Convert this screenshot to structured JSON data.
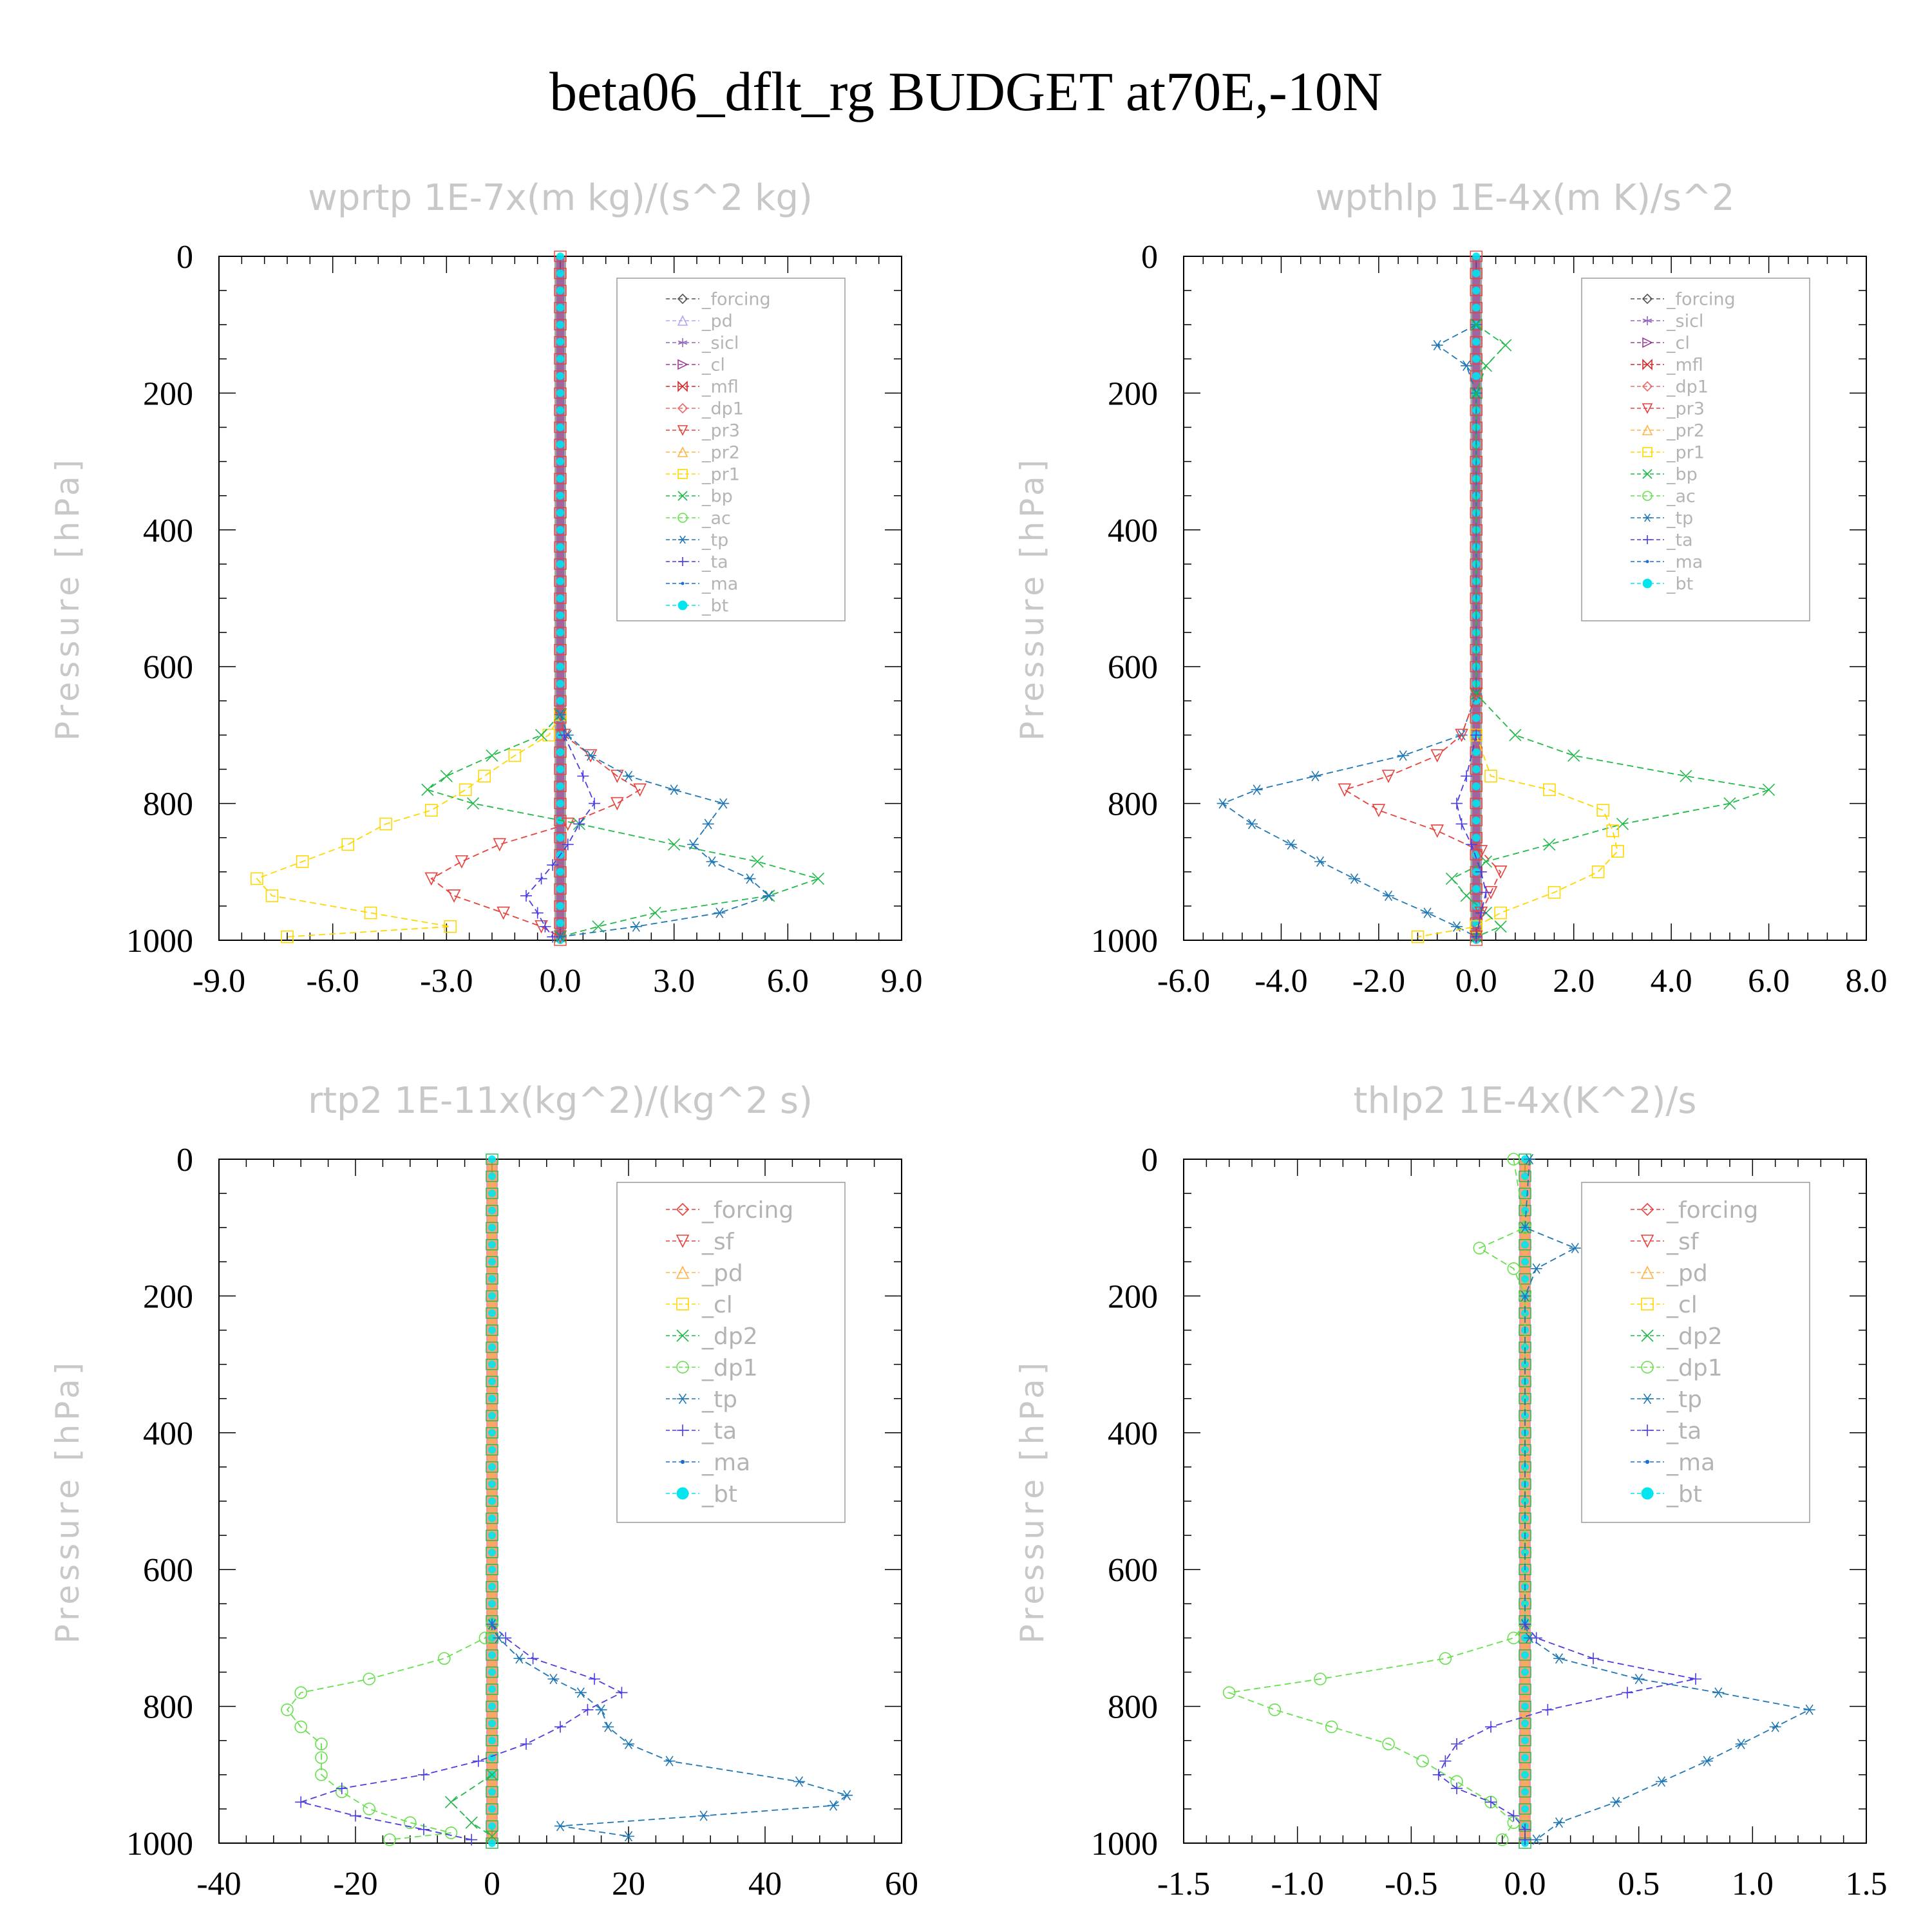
{
  "page": {
    "title": "beta06_dflt_rg  BUDGET at70E,-10N"
  },
  "chart_data": [
    {
      "type": "line",
      "title": "wprtp  1E-7x(m kg)/(s^2 kg)",
      "xlabel": "",
      "ylabel": "Pressure [hPa]",
      "xlim": [
        -9,
        9
      ],
      "ylim": [
        1000,
        0
      ],
      "xticks": [
        "-9.0",
        "-6.0",
        "-3.0",
        "0.0",
        "3.0",
        "6.0",
        "9.0"
      ],
      "yticks": [
        "0",
        "200",
        "400",
        "600",
        "800",
        "1000"
      ],
      "legend_position": "top-right",
      "legend": [
        "_forcing",
        "_pd",
        "_sicl",
        "_cl",
        "_mfl",
        "_dp1",
        "_pr3",
        "_pr2",
        "_pr1",
        "_bp",
        "_ac",
        "_tp",
        "_ta",
        "_ma",
        "_bt"
      ],
      "series": [
        {
          "name": "_pr1",
          "color": "#ffd700",
          "marker": "square",
          "p": [
            670,
            700,
            730,
            760,
            780,
            810,
            830,
            860,
            885,
            910,
            935,
            960,
            980,
            995
          ],
          "x": [
            0,
            -0.3,
            -1.2,
            -2.0,
            -2.5,
            -3.4,
            -4.6,
            -5.6,
            -6.8,
            -8.0,
            -7.6,
            -5.0,
            -2.9,
            -7.2
          ]
        },
        {
          "name": "_pr3",
          "color": "#e8413c",
          "marker": "triangle-down",
          "p": [
            670,
            700,
            730,
            760,
            780,
            800,
            830,
            860,
            885,
            910,
            935,
            960,
            980,
            995
          ],
          "x": [
            0,
            0.1,
            0.8,
            1.5,
            2.1,
            1.5,
            0.2,
            -1.6,
            -2.6,
            -3.4,
            -2.8,
            -1.5,
            -0.5,
            0
          ]
        },
        {
          "name": "_bp",
          "color": "#21b94a",
          "marker": "x",
          "p": [
            670,
            700,
            730,
            760,
            780,
            800,
            830,
            860,
            885,
            910,
            935,
            960,
            980,
            995
          ],
          "x": [
            0,
            -0.5,
            -1.8,
            -3.0,
            -3.5,
            -2.3,
            0.5,
            3.0,
            5.2,
            6.8,
            5.5,
            2.5,
            1.0,
            0
          ]
        },
        {
          "name": "_tp",
          "color": "#1f77b4",
          "marker": "asterisk",
          "p": [
            670,
            700,
            730,
            760,
            780,
            800,
            830,
            860,
            885,
            910,
            935,
            960,
            980,
            995
          ],
          "x": [
            0,
            0.2,
            0.8,
            1.8,
            3.0,
            4.3,
            3.9,
            3.5,
            4.0,
            5.0,
            5.5,
            4.2,
            2.0,
            0
          ]
        },
        {
          "name": "_ta",
          "color": "#4b3ee0",
          "marker": "plus",
          "p": [
            700,
            760,
            800,
            830,
            860,
            890,
            910,
            935,
            960,
            980,
            995
          ],
          "x": [
            0.1,
            0.6,
            0.9,
            0.5,
            0.2,
            -0.2,
            -0.5,
            -0.9,
            -0.6,
            -0.4,
            -0.2
          ]
        },
        {
          "name": "_bt",
          "color": "#00e5ee",
          "marker": "filled-circle",
          "p": [
            0,
            1000
          ],
          "x": [
            0,
            0
          ]
        }
      ]
    },
    {
      "type": "line",
      "title": "wpthlp  1E-4x(m K)/s^2",
      "xlabel": "",
      "ylabel": "Pressure [hPa]",
      "xlim": [
        -6,
        8
      ],
      "ylim": [
        1000,
        0
      ],
      "xticks": [
        "-6.0",
        "-4.0",
        "-2.0",
        "0.0",
        "2.0",
        "4.0",
        "6.0",
        "8.0"
      ],
      "yticks": [
        "0",
        "200",
        "400",
        "600",
        "800",
        "1000"
      ],
      "legend_position": "top-right",
      "legend": [
        "_forcing",
        "_sicl",
        "_cl",
        "_mfl",
        "_dp1",
        "_pr3",
        "_pr2",
        "_pr1",
        "_bp",
        "_ac",
        "_tp",
        "_ta",
        "_ma",
        "_bt"
      ],
      "series": [
        {
          "name": "_tp",
          "color": "#1f77b4",
          "marker": "asterisk",
          "p": [
            100,
            130,
            160,
            200,
            640,
            700,
            730,
            760,
            780,
            800,
            830,
            860,
            885,
            910,
            935,
            960,
            980,
            995
          ],
          "x": [
            0,
            -0.8,
            -0.2,
            0,
            0,
            -0.3,
            -1.5,
            -3.3,
            -4.5,
            -5.2,
            -4.6,
            -3.8,
            -3.2,
            -2.5,
            -1.8,
            -1.0,
            -0.4,
            0
          ]
        },
        {
          "name": "_bp",
          "color": "#21b94a",
          "marker": "x",
          "p": [
            100,
            130,
            160,
            200,
            640,
            700,
            730,
            760,
            780,
            800,
            830,
            860,
            885,
            910,
            935,
            960,
            980,
            995
          ],
          "x": [
            0,
            0.6,
            0.2,
            0,
            0,
            0.8,
            2.0,
            4.3,
            6.0,
            5.2,
            3.0,
            1.5,
            0.2,
            -0.5,
            -0.2,
            0.2,
            0.5,
            0
          ]
        },
        {
          "name": "_pr1",
          "color": "#ffd700",
          "marker": "square",
          "p": [
            700,
            760,
            780,
            810,
            840,
            870,
            900,
            930,
            960,
            980,
            995
          ],
          "x": [
            0,
            0.3,
            1.5,
            2.6,
            2.8,
            2.9,
            2.5,
            1.6,
            0.5,
            0,
            -1.2
          ]
        },
        {
          "name": "_pr3",
          "color": "#e8413c",
          "marker": "triangle-down",
          "p": [
            640,
            700,
            730,
            760,
            780,
            810,
            840,
            870,
            900,
            930,
            960,
            995
          ],
          "x": [
            0,
            -0.3,
            -0.8,
            -1.8,
            -2.7,
            -2.0,
            -0.8,
            0.1,
            0.5,
            0.3,
            0.1,
            0
          ]
        },
        {
          "name": "_ta",
          "color": "#4b3ee0",
          "marker": "plus",
          "p": [
            700,
            760,
            800,
            830,
            860,
            900,
            930,
            960,
            995
          ],
          "x": [
            0,
            -0.2,
            -0.4,
            -0.3,
            -0.1,
            0.1,
            0.2,
            0.1,
            0
          ]
        },
        {
          "name": "_bt",
          "color": "#00e5ee",
          "marker": "filled-circle",
          "p": [
            0,
            1000
          ],
          "x": [
            0,
            0
          ]
        }
      ]
    },
    {
      "type": "line",
      "title": "rtp2  1E-11x(kg^2)/(kg^2 s)",
      "xlabel": "",
      "ylabel": "Pressure [hPa]",
      "xlim": [
        -40,
        60
      ],
      "ylim": [
        1000,
        0
      ],
      "xticks": [
        "-40",
        "-20",
        "0",
        "20",
        "40",
        "60"
      ],
      "yticks": [
        "0",
        "200",
        "400",
        "600",
        "800",
        "1000"
      ],
      "legend_position": "top-right",
      "legend": [
        "_forcing",
        "_sf",
        "_pd",
        "_cl",
        "_dp2",
        "_dp1",
        "_tp",
        "_ta",
        "_ma",
        "_bt"
      ],
      "series": [
        {
          "name": "_dp1",
          "color": "#66e04c",
          "marker": "circle",
          "p": [
            680,
            700,
            730,
            760,
            780,
            805,
            830,
            855,
            875,
            900,
            925,
            950,
            970,
            985,
            995
          ],
          "x": [
            0,
            -1,
            -7,
            -18,
            -28,
            -30,
            -28,
            -25,
            -25,
            -25,
            -22,
            -18,
            -12,
            -6,
            -15
          ]
        },
        {
          "name": "_ta",
          "color": "#4b3ee0",
          "marker": "plus",
          "p": [
            680,
            700,
            730,
            760,
            780,
            805,
            830,
            855,
            880,
            900,
            920,
            940,
            960,
            980,
            995
          ],
          "x": [
            0,
            2,
            6,
            15,
            19,
            14,
            10,
            5,
            -2,
            -10,
            -22,
            -28,
            -20,
            -10,
            -3
          ]
        },
        {
          "name": "_tp",
          "color": "#1f77b4",
          "marker": "asterisk",
          "p": [
            680,
            700,
            730,
            760,
            780,
            805,
            830,
            855,
            880,
            910,
            930,
            945,
            960,
            975,
            990
          ],
          "x": [
            0,
            1,
            4,
            9,
            13,
            16,
            17,
            20,
            26,
            45,
            52,
            50,
            31,
            10,
            20
          ]
        },
        {
          "name": "_dp2",
          "color": "#21b94a",
          "marker": "x",
          "p": [
            900,
            940,
            970,
            990
          ],
          "x": [
            0,
            -6,
            -3,
            0
          ]
        },
        {
          "name": "_bt",
          "color": "#00e5ee",
          "marker": "filled-circle",
          "p": [
            0,
            1000
          ],
          "x": [
            0,
            0
          ]
        }
      ]
    },
    {
      "type": "line",
      "title": "thlp2  1E-4x(K^2)/s",
      "xlabel": "",
      "ylabel": "Pressure [hPa]",
      "xlim": [
        -1.5,
        1.5
      ],
      "ylim": [
        1000,
        0
      ],
      "xticks": [
        "-1.5",
        "-1.0",
        "-0.5",
        "0.0",
        "0.5",
        "1.0",
        "1.5"
      ],
      "yticks": [
        "0",
        "200",
        "400",
        "600",
        "800",
        "1000"
      ],
      "legend_position": "top-right",
      "legend": [
        "_forcing",
        "_sf",
        "_pd",
        "_cl",
        "_dp2",
        "_dp1",
        "_tp",
        "_ta",
        "_ma",
        "_bt"
      ],
      "series": [
        {
          "name": "_dp1",
          "color": "#66e04c",
          "marker": "circle",
          "p": [
            0,
            100,
            130,
            160,
            200,
            680,
            700,
            730,
            760,
            780,
            805,
            830,
            855,
            880,
            910,
            940,
            970,
            995
          ],
          "x": [
            -0.05,
            0,
            -0.2,
            -0.05,
            0,
            0,
            -0.05,
            -0.35,
            -0.9,
            -1.3,
            -1.1,
            -0.85,
            -0.6,
            -0.45,
            -0.3,
            -0.15,
            -0.05,
            -0.1
          ]
        },
        {
          "name": "_tp",
          "color": "#1f77b4",
          "marker": "asterisk",
          "p": [
            0,
            100,
            130,
            160,
            200,
            680,
            700,
            730,
            760,
            780,
            805,
            830,
            855,
            880,
            910,
            940,
            970,
            995
          ],
          "x": [
            0.02,
            0,
            0.22,
            0.05,
            0,
            0,
            0.02,
            0.15,
            0.5,
            0.85,
            1.25,
            1.1,
            0.95,
            0.8,
            0.6,
            0.4,
            0.15,
            0.05
          ]
        },
        {
          "name": "_ta",
          "color": "#4b3ee0",
          "marker": "plus",
          "p": [
            680,
            700,
            730,
            760,
            780,
            805,
            830,
            855,
            880,
            900,
            920,
            940,
            960,
            980,
            995
          ],
          "x": [
            0,
            0.05,
            0.3,
            0.75,
            0.45,
            0.1,
            -0.15,
            -0.3,
            -0.35,
            -0.38,
            -0.3,
            -0.15,
            -0.05,
            0,
            0
          ]
        },
        {
          "name": "_bt",
          "color": "#00e5ee",
          "marker": "filled-circle",
          "p": [
            0,
            1000
          ],
          "x": [
            0,
            0
          ]
        }
      ]
    }
  ]
}
